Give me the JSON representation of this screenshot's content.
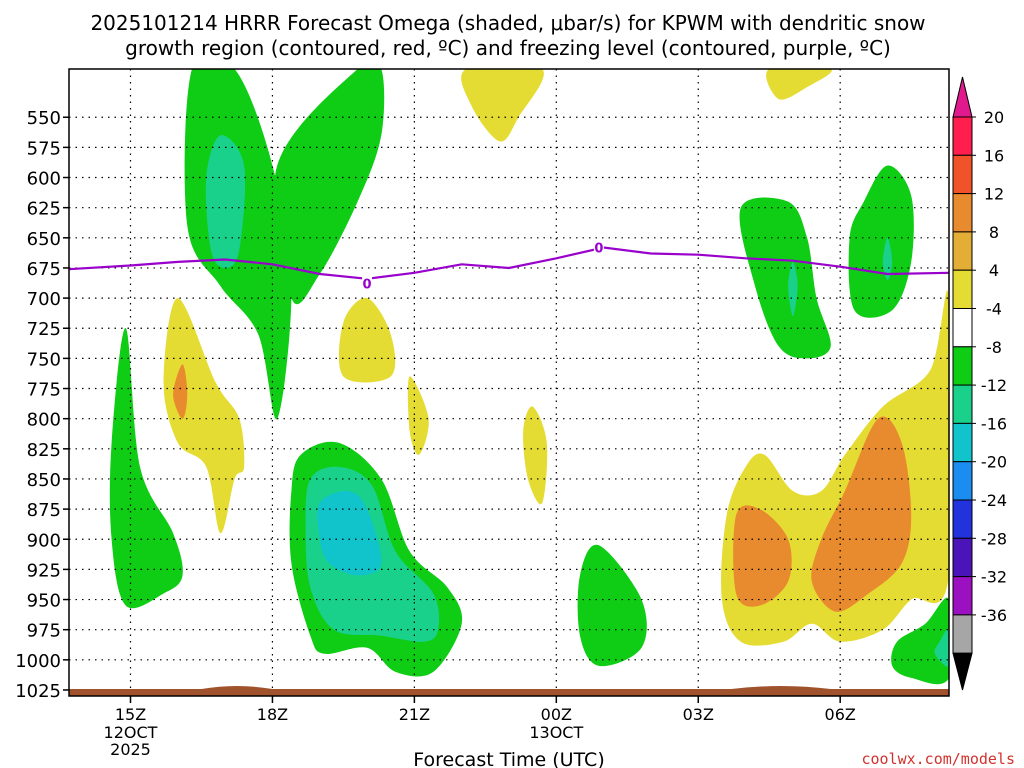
{
  "chart_data": {
    "type": "contour",
    "title_line1": "2025101214 HRRR Forecast Omega (shaded, μbar/s) for KPWM with dendritic snow",
    "title_line2": "growth region (contoured, red, ºC) and freezing level (contoured, purple, ºC)",
    "xlabel": "Forecast Time (UTC)",
    "watermark": "coolwx.com/models",
    "x_range_hours": [
      13.7,
      32.3
    ],
    "y_range_hpa": [
      510,
      1030
    ],
    "x_ticks": [
      {
        "h": 15,
        "label": "15Z"
      },
      {
        "h": 18,
        "label": "18Z"
      },
      {
        "h": 21,
        "label": "21Z"
      },
      {
        "h": 24,
        "label": "00Z"
      },
      {
        "h": 27,
        "label": "03Z"
      },
      {
        "h": 30,
        "label": "06Z"
      }
    ],
    "date_labels": [
      {
        "h": 15,
        "lines": [
          "12OCT",
          "2025"
        ]
      },
      {
        "h": 24,
        "lines": [
          "13OCT"
        ]
      }
    ],
    "y_ticks": [
      550,
      575,
      600,
      625,
      650,
      675,
      700,
      725,
      750,
      775,
      800,
      825,
      850,
      875,
      900,
      925,
      950,
      975,
      1000,
      1025
    ],
    "colorbar": {
      "labels": [
        "20",
        "16",
        "12",
        "8",
        "4",
        "-4",
        "-8",
        "-12",
        "-16",
        "-20",
        "-24",
        "-28",
        "-32",
        "-36"
      ],
      "bins": [
        {
          "c": "#ff1e4e"
        },
        {
          "c": "#f0532a"
        },
        {
          "c": "#e88a2e"
        },
        {
          "c": "#e3ae36"
        },
        {
          "c": "#e5dc33"
        },
        {
          "c": "#ffffff"
        },
        {
          "c": "#0fcc15"
        },
        {
          "c": "#19d18a"
        },
        {
          "c": "#11c4cc"
        },
        {
          "c": "#1b8cf0"
        },
        {
          "c": "#2233dd"
        },
        {
          "c": "#4a14b8"
        },
        {
          "c": "#9b10c0"
        },
        {
          "c": "#a6a6a6"
        }
      ],
      "top_triangle_color": "#e01a8c",
      "bottom_triangle_color": "#000000"
    },
    "freezing_level": {
      "color": "#9900cc",
      "label": "0",
      "label_points": [
        {
          "h": 20.0,
          "p": 688
        },
        {
          "h": 24.9,
          "p": 658
        }
      ],
      "points": [
        [
          13.7,
          676
        ],
        [
          15.0,
          673
        ],
        [
          16.0,
          670
        ],
        [
          17.0,
          668
        ],
        [
          18.0,
          672
        ],
        [
          19.0,
          680
        ],
        [
          20.0,
          684
        ],
        [
          21.0,
          679
        ],
        [
          22.0,
          672
        ],
        [
          23.0,
          675
        ],
        [
          24.0,
          667
        ],
        [
          25.0,
          658
        ],
        [
          26.0,
          663
        ],
        [
          27.0,
          664
        ],
        [
          28.0,
          667
        ],
        [
          29.0,
          669
        ],
        [
          30.0,
          674
        ],
        [
          31.0,
          680
        ],
        [
          32.3,
          679
        ]
      ]
    },
    "terrain_color": "#a0522d",
    "omega_regions": [
      {
        "c": "#0fcc15",
        "pts": [
          [
            16.3,
            510
          ],
          [
            17.2,
            510
          ],
          [
            18.0,
            590
          ],
          [
            18.4,
            690
          ],
          [
            18.1,
            800
          ],
          [
            17.7,
            730
          ],
          [
            16.9,
            690
          ],
          [
            16.2,
            640
          ]
        ]
      },
      {
        "c": "#0fcc15",
        "pts": [
          [
            18.1,
            590
          ],
          [
            19.8,
            510
          ],
          [
            20.3,
            510
          ],
          [
            20.3,
            565
          ],
          [
            19.8,
            620
          ],
          [
            19.0,
            680
          ],
          [
            18.4,
            700
          ]
        ]
      },
      {
        "c": "#19d18a",
        "pts": [
          [
            16.9,
            565
          ],
          [
            17.4,
            590
          ],
          [
            17.3,
            660
          ],
          [
            17.0,
            675
          ],
          [
            16.7,
            660
          ],
          [
            16.6,
            600
          ]
        ]
      },
      {
        "c": "#0fcc15",
        "pts": [
          [
            14.9,
            725
          ],
          [
            15.2,
            840
          ],
          [
            15.9,
            895
          ],
          [
            16.1,
            930
          ],
          [
            15.7,
            945
          ],
          [
            14.9,
            955
          ],
          [
            14.6,
            900
          ],
          [
            14.6,
            820
          ]
        ]
      },
      {
        "c": "#e5dc33",
        "pts": [
          [
            16.0,
            700
          ],
          [
            16.8,
            770
          ],
          [
            17.3,
            800
          ],
          [
            17.4,
            840
          ],
          [
            17.2,
            850
          ],
          [
            16.9,
            895
          ],
          [
            16.6,
            840
          ],
          [
            16.0,
            820
          ],
          [
            15.7,
            770
          ]
        ]
      },
      {
        "c": "#e88a2e",
        "pts": [
          [
            16.1,
            755
          ],
          [
            16.2,
            780
          ],
          [
            16.1,
            800
          ],
          [
            15.9,
            780
          ]
        ]
      },
      {
        "c": "#e5dc33",
        "pts": [
          [
            20.0,
            700
          ],
          [
            20.5,
            730
          ],
          [
            20.5,
            765
          ],
          [
            19.5,
            765
          ],
          [
            19.5,
            720
          ]
        ]
      },
      {
        "c": "#e5dc33",
        "pts": [
          [
            20.9,
            765
          ],
          [
            21.3,
            800
          ],
          [
            21.1,
            830
          ],
          [
            20.9,
            810
          ]
        ]
      },
      {
        "c": "#0fcc15",
        "pts": [
          [
            18.6,
            830
          ],
          [
            19.4,
            820
          ],
          [
            20.3,
            850
          ],
          [
            20.9,
            910
          ],
          [
            21.7,
            940
          ],
          [
            22.0,
            970
          ],
          [
            21.4,
            1010
          ],
          [
            20.6,
            1010
          ],
          [
            20.0,
            990
          ],
          [
            19.1,
            995
          ],
          [
            18.8,
            980
          ],
          [
            18.4,
            920
          ],
          [
            18.4,
            860
          ]
        ]
      },
      {
        "c": "#19d18a",
        "pts": [
          [
            18.8,
            850
          ],
          [
            19.4,
            840
          ],
          [
            20.1,
            855
          ],
          [
            20.6,
            910
          ],
          [
            21.4,
            945
          ],
          [
            21.5,
            975
          ],
          [
            21.2,
            985
          ],
          [
            20.3,
            980
          ],
          [
            19.3,
            975
          ],
          [
            18.8,
            940
          ],
          [
            18.7,
            890
          ]
        ]
      },
      {
        "c": "#11c4cc",
        "pts": [
          [
            19.0,
            870
          ],
          [
            19.6,
            860
          ],
          [
            20.0,
            875
          ],
          [
            20.3,
            920
          ],
          [
            19.8,
            930
          ],
          [
            19.2,
            920
          ],
          [
            19.0,
            900
          ]
        ]
      },
      {
        "c": "#e5dc33",
        "pts": [
          [
            23.5,
            790
          ],
          [
            23.8,
            820
          ],
          [
            23.7,
            870
          ],
          [
            23.4,
            850
          ],
          [
            23.3,
            810
          ]
        ]
      },
      {
        "c": "#0fcc15",
        "pts": [
          [
            24.9,
            905
          ],
          [
            25.8,
            950
          ],
          [
            25.8,
            990
          ],
          [
            24.9,
            1005
          ],
          [
            24.5,
            980
          ],
          [
            24.5,
            930
          ]
        ]
      },
      {
        "c": "#e5dc33",
        "pts": [
          [
            22.1,
            510
          ],
          [
            23.7,
            510
          ],
          [
            23.2,
            550
          ],
          [
            22.8,
            570
          ],
          [
            22.2,
            540
          ]
        ]
      },
      {
        "c": "#e5dc33",
        "pts": [
          [
            28.5,
            510
          ],
          [
            29.8,
            510
          ],
          [
            29.3,
            525
          ],
          [
            28.7,
            535
          ]
        ]
      },
      {
        "c": "#0fcc15",
        "pts": [
          [
            27.9,
            625
          ],
          [
            28.9,
            620
          ],
          [
            29.3,
            650
          ],
          [
            29.5,
            700
          ],
          [
            29.8,
            740
          ],
          [
            29.3,
            750
          ],
          [
            28.7,
            740
          ],
          [
            28.2,
            690
          ]
        ]
      },
      {
        "c": "#19d18a",
        "pts": [
          [
            29.0,
            670
          ],
          [
            29.1,
            690
          ],
          [
            29.0,
            715
          ],
          [
            28.9,
            690
          ]
        ]
      },
      {
        "c": "#0fcc15",
        "pts": [
          [
            31.0,
            590
          ],
          [
            31.5,
            615
          ],
          [
            31.5,
            670
          ],
          [
            31.1,
            710
          ],
          [
            30.3,
            710
          ],
          [
            30.2,
            650
          ],
          [
            30.5,
            620
          ]
        ]
      },
      {
        "c": "#19d18a",
        "pts": [
          [
            31.0,
            650
          ],
          [
            31.1,
            670
          ],
          [
            31.0,
            685
          ],
          [
            30.9,
            670
          ]
        ]
      },
      {
        "c": "#e5dc33",
        "pts": [
          [
            27.6,
            880
          ],
          [
            28.0,
            840
          ],
          [
            28.4,
            830
          ],
          [
            29.0,
            860
          ],
          [
            29.6,
            860
          ],
          [
            30.1,
            830
          ],
          [
            30.9,
            790
          ],
          [
            31.9,
            760
          ],
          [
            32.3,
            700
          ],
          [
            32.3,
            930
          ],
          [
            31.5,
            950
          ],
          [
            30.9,
            975
          ],
          [
            30.0,
            985
          ],
          [
            29.4,
            970
          ],
          [
            28.8,
            985
          ],
          [
            27.9,
            985
          ],
          [
            27.5,
            950
          ]
        ]
      },
      {
        "c": "#e88a2e",
        "pts": [
          [
            27.8,
            880
          ],
          [
            28.3,
            875
          ],
          [
            28.9,
            900
          ],
          [
            28.9,
            935
          ],
          [
            28.3,
            955
          ],
          [
            27.8,
            945
          ]
        ]
      },
      {
        "c": "#e88a2e",
        "pts": [
          [
            29.4,
            935
          ],
          [
            29.6,
            900
          ],
          [
            30.1,
            860
          ],
          [
            30.8,
            800
          ],
          [
            31.3,
            820
          ],
          [
            31.5,
            880
          ],
          [
            31.3,
            920
          ],
          [
            30.6,
            945
          ],
          [
            29.9,
            960
          ]
        ]
      },
      {
        "c": "#0fcc15",
        "pts": [
          [
            32.3,
            950
          ],
          [
            32.3,
            1015
          ],
          [
            31.5,
            1015
          ],
          [
            31.1,
            1005
          ],
          [
            31.2,
            985
          ],
          [
            31.8,
            970
          ]
        ]
      },
      {
        "c": "#19d18a",
        "pts": [
          [
            32.3,
            975
          ],
          [
            32.3,
            1005
          ],
          [
            32.0,
            995
          ],
          [
            32.1,
            985
          ]
        ]
      }
    ]
  }
}
